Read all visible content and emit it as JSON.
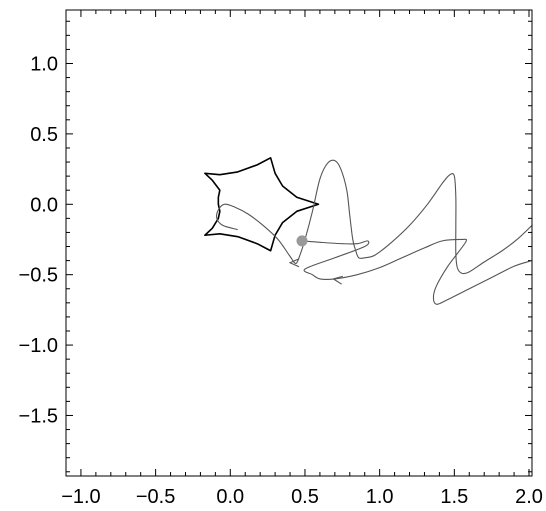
{
  "chart_data": {
    "type": "line",
    "title": "",
    "xlabel": "",
    "ylabel": "",
    "xlim": [
      -1.1,
      2.02
    ],
    "ylim": [
      -1.93,
      1.38
    ],
    "x_ticks": [
      -1.0,
      -0.5,
      0.0,
      0.5,
      1.0,
      1.5,
      2.0
    ],
    "x_tick_labels": [
      "−1.0",
      "−0.5",
      "0.0",
      "0.5",
      "1.0",
      "1.5",
      "2.0"
    ],
    "y_ticks": [
      1.0,
      0.5,
      0.0,
      -0.5,
      -1.0,
      -1.5
    ],
    "y_tick_labels": [
      "1.0",
      "0.5",
      "0.0",
      "−0.5",
      "−1.0",
      "−1.5"
    ],
    "grid": false,
    "legend": "none",
    "series": [
      {
        "kind": "closed-curve",
        "color": "#000000",
        "points": [
          [
            0.59,
            0.0
          ],
          [
            0.445,
            -0.05
          ],
          [
            0.35,
            -0.13
          ],
          [
            0.3,
            -0.22
          ],
          [
            0.27,
            -0.33
          ],
          [
            0.18,
            -0.28
          ],
          [
            0.05,
            -0.23
          ],
          [
            -0.07,
            -0.21
          ],
          [
            -0.17,
            -0.22
          ],
          [
            -0.12,
            -0.17
          ],
          [
            -0.08,
            -0.1
          ],
          [
            -0.07,
            -0.05
          ],
          [
            -0.08,
            0.0
          ],
          [
            -0.08,
            0.05
          ],
          [
            -0.07,
            0.1
          ],
          [
            -0.12,
            0.17
          ],
          [
            -0.17,
            0.22
          ],
          [
            -0.07,
            0.21
          ],
          [
            0.05,
            0.23
          ],
          [
            0.18,
            0.28
          ],
          [
            0.27,
            0.33
          ],
          [
            0.3,
            0.22
          ],
          [
            0.35,
            0.13
          ],
          [
            0.445,
            0.05
          ],
          [
            0.59,
            0.0
          ]
        ]
      },
      {
        "kind": "path",
        "color": "#555555",
        "points": [
          [
            0.05,
            -0.18
          ],
          [
            -0.05,
            -0.15
          ],
          [
            -0.09,
            -0.1
          ],
          [
            -0.08,
            -0.04
          ],
          [
            -0.04,
            0.0
          ],
          [
            0.03,
            -0.02
          ],
          [
            0.12,
            -0.07
          ],
          [
            0.22,
            -0.15
          ],
          [
            0.32,
            -0.25
          ],
          [
            0.4,
            -0.37
          ],
          [
            0.44,
            -0.42
          ],
          [
            0.47,
            -0.35
          ],
          [
            0.5,
            -0.25
          ],
          [
            0.55,
            -0.05
          ],
          [
            0.6,
            0.18
          ],
          [
            0.65,
            0.29
          ],
          [
            0.7,
            0.31
          ],
          [
            0.74,
            0.25
          ],
          [
            0.78,
            0.1
          ],
          [
            0.8,
            -0.08
          ],
          [
            0.82,
            -0.25
          ],
          [
            0.84,
            -0.33
          ],
          [
            0.86,
            -0.38
          ],
          [
            0.9,
            -0.38
          ],
          [
            0.97,
            -0.36
          ],
          [
            1.08,
            -0.27
          ],
          [
            1.2,
            -0.15
          ],
          [
            1.32,
            0.0
          ],
          [
            1.42,
            0.15
          ],
          [
            1.47,
            0.21
          ],
          [
            1.5,
            0.2
          ],
          [
            1.51,
            0.05
          ],
          [
            1.51,
            -0.15
          ],
          [
            1.51,
            -0.35
          ],
          [
            1.52,
            -0.45
          ],
          [
            1.55,
            -0.49
          ],
          [
            1.6,
            -0.48
          ],
          [
            1.7,
            -0.41
          ],
          [
            1.82,
            -0.33
          ],
          [
            1.92,
            -0.25
          ],
          [
            2.02,
            -0.15
          ]
        ]
      },
      {
        "kind": "path",
        "color": "#555555",
        "points": [
          [
            0.48,
            -0.26
          ],
          [
            0.6,
            -0.27
          ],
          [
            0.75,
            -0.28
          ],
          [
            0.85,
            -0.28
          ],
          [
            0.92,
            -0.26
          ],
          [
            0.9,
            -0.3
          ],
          [
            0.7,
            -0.38
          ],
          [
            0.5,
            -0.46
          ],
          [
            0.55,
            -0.5
          ],
          [
            0.6,
            -0.53
          ],
          [
            0.7,
            -0.53
          ],
          [
            0.85,
            -0.5
          ],
          [
            1.0,
            -0.45
          ],
          [
            1.15,
            -0.38
          ],
          [
            1.3,
            -0.31
          ],
          [
            1.42,
            -0.26
          ],
          [
            1.55,
            -0.25
          ],
          [
            1.58,
            -0.26
          ],
          [
            1.52,
            -0.35
          ],
          [
            1.45,
            -0.45
          ],
          [
            1.38,
            -0.58
          ],
          [
            1.36,
            -0.66
          ],
          [
            1.38,
            -0.71
          ],
          [
            1.45,
            -0.68
          ],
          [
            1.6,
            -0.6
          ],
          [
            1.75,
            -0.52
          ],
          [
            1.9,
            -0.44
          ],
          [
            2.02,
            -0.4
          ]
        ]
      }
    ],
    "arrows": [
      {
        "at": [
          0.4,
          -0.415
        ],
        "dir": [
          -1,
          0
        ],
        "color": "#555555"
      },
      {
        "at": [
          0.69,
          -0.53
        ],
        "dir": [
          -1,
          0.15
        ],
        "color": "#555555"
      }
    ],
    "marker": {
      "x": 0.48,
      "y": -0.26,
      "color": "#999999"
    }
  }
}
